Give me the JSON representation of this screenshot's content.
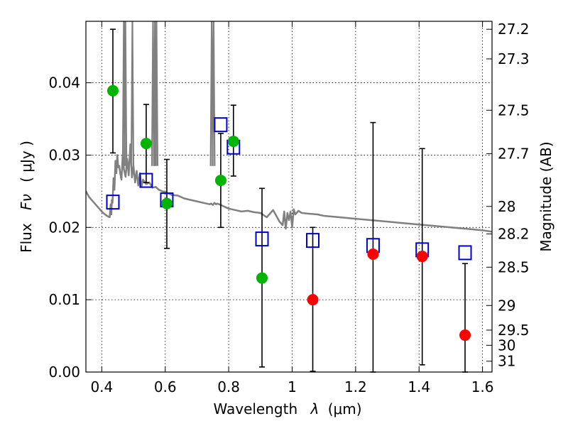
{
  "chart_data": {
    "type": "scatter",
    "xlabel": "Wavelength",
    "xlabel_symbol": "λ",
    "xlabel_unit": "(μm)",
    "ylabel": "Flux",
    "ylabel_symbol": "Fν",
    "ylabel_unit": "( μJy )",
    "y2label": "Magnitude (AB)",
    "xlim": [
      0.35,
      1.63
    ],
    "ylim": [
      0.0,
      0.0485
    ],
    "grid": true,
    "x_ticks": [
      0.4,
      0.6,
      0.8,
      1.0,
      1.2,
      1.4,
      1.6
    ],
    "x_tick_labels": [
      "0.4",
      "0.6",
      "0.8",
      "1",
      "1.2",
      "1.4",
      "1.6"
    ],
    "y_ticks": [
      0.0,
      0.01,
      0.02,
      0.03,
      0.04
    ],
    "y_tick_labels": [
      "0.00",
      "0.01",
      "0.02",
      "0.03",
      "0.04"
    ],
    "y2_ticks": [
      {
        "flux": 0.0474,
        "label": "27.2"
      },
      {
        "flux": 0.0433,
        "label": "27.3"
      },
      {
        "flux": 0.0362,
        "label": "27.5"
      },
      {
        "flux": 0.0302,
        "label": "27.7"
      },
      {
        "flux": 0.0229,
        "label": "28"
      },
      {
        "flux": 0.0191,
        "label": "28.2"
      },
      {
        "flux": 0.0145,
        "label": "28.5"
      },
      {
        "flux": 0.0092,
        "label": "29"
      },
      {
        "flux": 0.0058,
        "label": "29.5"
      },
      {
        "flux": 0.0037,
        "label": "30"
      },
      {
        "flux": 0.0015,
        "label": "31"
      }
    ],
    "model_sed": {
      "name": "model spectrum",
      "color": "#808080",
      "x": [
        0.35,
        0.36,
        0.38,
        0.4,
        0.41,
        0.42,
        0.425,
        0.428,
        0.43,
        0.432,
        0.434,
        0.437,
        0.44,
        0.443,
        0.446,
        0.449,
        0.452,
        0.455,
        0.458,
        0.462,
        0.466,
        0.47,
        0.475,
        0.48,
        0.485,
        0.49,
        0.495,
        0.5,
        0.505,
        0.51,
        0.515,
        0.52,
        0.525,
        0.53,
        0.54,
        0.55,
        0.56,
        0.57,
        0.58,
        0.59,
        0.6,
        0.62,
        0.64,
        0.66,
        0.68,
        0.7,
        0.72,
        0.74,
        0.745,
        0.75,
        0.755,
        0.76,
        0.763,
        0.77,
        0.78,
        0.79,
        0.8,
        0.82,
        0.84,
        0.86,
        0.88,
        0.9,
        0.92,
        0.94,
        0.96,
        0.97,
        0.975,
        0.98,
        0.985,
        0.99,
        0.995,
        1.0,
        1.005,
        1.01,
        1.02,
        1.03,
        1.05,
        1.08,
        1.1,
        1.15,
        1.2,
        1.25,
        1.3,
        1.35,
        1.4,
        1.45,
        1.5,
        1.55,
        1.6,
        1.63
      ],
      "y": [
        0.025,
        0.0242,
        0.0232,
        0.0222,
        0.0218,
        0.0215,
        0.0214,
        0.0232,
        0.0218,
        0.0238,
        0.0234,
        0.0268,
        0.0252,
        0.0292,
        0.0275,
        0.03,
        0.0283,
        0.0285,
        0.0275,
        0.0266,
        0.03,
        0.028,
        0.027,
        0.0295,
        0.0272,
        0.0315,
        0.0269,
        0.0285,
        0.0262,
        0.0278,
        0.0258,
        0.0275,
        0.0256,
        0.0266,
        0.026,
        0.0262,
        0.0255,
        0.0256,
        0.0252,
        0.025,
        0.0249,
        0.0245,
        0.0244,
        0.024,
        0.0238,
        0.0236,
        0.0234,
        0.0232,
        0.0233,
        0.0231,
        0.0234,
        0.0232,
        0.0233,
        0.0232,
        0.023,
        0.0228,
        0.0226,
        0.0224,
        0.0222,
        0.0223,
        0.0221,
        0.022,
        0.0214,
        0.0224,
        0.0208,
        0.0203,
        0.0222,
        0.0198,
        0.022,
        0.021,
        0.0222,
        0.02,
        0.0225,
        0.0218,
        0.0223,
        0.022,
        0.0219,
        0.0218,
        0.0216,
        0.0214,
        0.0212,
        0.021,
        0.0208,
        0.0206,
        0.0204,
        0.0202,
        0.02,
        0.0198,
        0.0196,
        0.0194
      ],
      "spikes": [
        {
          "x": 0.4695,
          "top": 0.0485
        },
        {
          "x": 0.4745,
          "top": 0.0485
        },
        {
          "x": 0.4965,
          "top": 0.0485
        },
        {
          "x": 0.5615,
          "top": 0.0485
        },
        {
          "x": 0.5675,
          "top": 0.0485
        },
        {
          "x": 0.5725,
          "top": 0.0485
        },
        {
          "x": 0.7465,
          "top": 0.0485
        },
        {
          "x": 0.7525,
          "top": 0.0485
        }
      ]
    },
    "model_photometry": {
      "name": "model photometry",
      "marker": "open-square",
      "color": "#0000cc",
      "x": [
        0.435,
        0.54,
        0.605,
        0.775,
        0.815,
        0.905,
        1.065,
        1.255,
        1.41,
        1.545
      ],
      "y": [
        0.0235,
        0.0265,
        0.0238,
        0.0342,
        0.0311,
        0.0184,
        0.0182,
        0.0175,
        0.0169,
        0.0165
      ]
    },
    "detections": {
      "name": "detections",
      "marker": "filled-circle",
      "color": "#00b400",
      "x": [
        0.435,
        0.54,
        0.605,
        0.775,
        0.815,
        0.905
      ],
      "y": [
        0.0389,
        0.0316,
        0.0233,
        0.0265,
        0.0319,
        0.013
      ],
      "yerr_low": [
        0.0303,
        0.0262,
        0.0171,
        0.02,
        0.0271,
        0.0007
      ],
      "yerr_high": [
        0.0474,
        0.037,
        0.0294,
        0.033,
        0.0369,
        0.0254
      ]
    },
    "non_detections": {
      "name": "non-detections",
      "marker": "filled-circle",
      "color": "#ff0000",
      "x": [
        1.065,
        1.255,
        1.41,
        1.545
      ],
      "y": [
        0.01,
        0.0163,
        0.016,
        0.0051
      ],
      "yerr_low": [
        0.0001,
        0.0,
        0.001,
        0.0
      ],
      "yerr_high": [
        0.02,
        0.0345,
        0.0309,
        0.015
      ]
    }
  }
}
